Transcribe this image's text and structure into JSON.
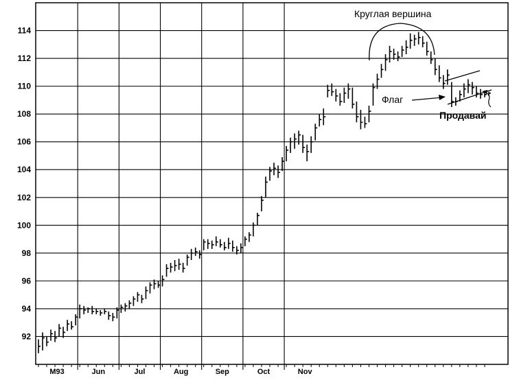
{
  "chart_data": {
    "type": "ohlc",
    "title": "",
    "xlabel": "",
    "ylabel": "",
    "ylim": [
      90,
      116
    ],
    "y_ticks": [
      92,
      94,
      96,
      98,
      100,
      102,
      104,
      106,
      108,
      110,
      112,
      114
    ],
    "x_ticks": [
      "M93",
      "Jun",
      "Jul",
      "Aug",
      "Sep",
      "Oct",
      "Nov"
    ],
    "grid": true,
    "annotations": {
      "rounded_top": "Круглая вершина",
      "flag": "Флаг",
      "sell": "Продавай"
    },
    "series": [
      {
        "values": [
          {
            "high": 91.8,
            "low": 90.8,
            "close": 91.3
          },
          {
            "high": 92.3,
            "low": 91.0,
            "close": 91.9
          },
          {
            "high": 92.0,
            "low": 91.3,
            "close": 91.6
          },
          {
            "high": 92.5,
            "low": 91.7,
            "close": 92.2
          },
          {
            "high": 92.4,
            "low": 91.6,
            "close": 91.9
          },
          {
            "high": 92.9,
            "low": 92.0,
            "close": 92.6
          },
          {
            "high": 92.7,
            "low": 91.9,
            "close": 92.3
          },
          {
            "high": 93.2,
            "low": 92.4,
            "close": 92.9
          },
          {
            "high": 93.1,
            "low": 92.5,
            "close": 92.7
          },
          {
            "high": 93.6,
            "low": 92.8,
            "close": 93.4
          },
          {
            "high": 94.3,
            "low": 93.3,
            "close": 94.0
          },
          {
            "high": 94.2,
            "low": 93.6,
            "close": 93.9
          },
          {
            "high": 94.1,
            "low": 93.7,
            "close": 94.0
          },
          {
            "high": 94.2,
            "low": 93.6,
            "close": 93.8
          },
          {
            "high": 94.0,
            "low": 93.6,
            "close": 93.8
          },
          {
            "high": 93.9,
            "low": 93.5,
            "close": 93.7
          },
          {
            "high": 94.0,
            "low": 93.6,
            "close": 93.8
          },
          {
            "high": 93.8,
            "low": 93.2,
            "close": 93.5
          },
          {
            "high": 93.7,
            "low": 93.1,
            "close": 93.4
          },
          {
            "high": 94.1,
            "low": 93.3,
            "close": 93.9
          },
          {
            "high": 94.3,
            "low": 93.7,
            "close": 94.1
          },
          {
            "high": 94.4,
            "low": 93.8,
            "close": 94.2
          },
          {
            "high": 94.6,
            "low": 94.0,
            "close": 94.4
          },
          {
            "high": 94.9,
            "low": 94.2,
            "close": 94.7
          },
          {
            "high": 95.2,
            "low": 94.5,
            "close": 95.0
          },
          {
            "high": 95.0,
            "low": 94.4,
            "close": 94.7
          },
          {
            "high": 95.6,
            "low": 94.7,
            "close": 95.3
          },
          {
            "high": 95.9,
            "low": 95.1,
            "close": 95.7
          },
          {
            "high": 96.1,
            "low": 95.4,
            "close": 95.8
          },
          {
            "high": 96.0,
            "low": 95.5,
            "close": 95.7
          },
          {
            "high": 96.4,
            "low": 95.6,
            "close": 96.1
          },
          {
            "high": 97.2,
            "low": 96.3,
            "close": 96.9
          },
          {
            "high": 97.3,
            "low": 96.6,
            "close": 97.0
          },
          {
            "high": 97.5,
            "low": 96.7,
            "close": 97.1
          },
          {
            "high": 97.6,
            "low": 96.8,
            "close": 97.2
          },
          {
            "high": 97.3,
            "low": 96.6,
            "close": 96.9
          },
          {
            "high": 97.9,
            "low": 97.1,
            "close": 97.7
          },
          {
            "high": 98.3,
            "low": 97.5,
            "close": 98.0
          },
          {
            "high": 98.4,
            "low": 97.8,
            "close": 98.1
          },
          {
            "high": 98.2,
            "low": 97.6,
            "close": 97.9
          },
          {
            "high": 99.0,
            "low": 98.2,
            "close": 98.8
          },
          {
            "high": 99.0,
            "low": 98.3,
            "close": 98.7
          },
          {
            "high": 98.9,
            "low": 98.3,
            "close": 98.6
          },
          {
            "high": 99.2,
            "low": 98.5,
            "close": 98.8
          },
          {
            "high": 99.0,
            "low": 98.4,
            "close": 98.6
          },
          {
            "high": 98.8,
            "low": 98.2,
            "close": 98.4
          },
          {
            "high": 99.1,
            "low": 98.3,
            "close": 98.7
          },
          {
            "high": 98.9,
            "low": 98.1,
            "close": 98.4
          },
          {
            "high": 98.5,
            "low": 97.9,
            "close": 98.2
          },
          {
            "high": 98.7,
            "low": 98.0,
            "close": 98.4
          },
          {
            "high": 99.2,
            "low": 98.5,
            "close": 99.0
          },
          {
            "high": 99.5,
            "low": 98.8,
            "close": 99.3
          },
          {
            "high": 100.2,
            "low": 99.2,
            "close": 100.0
          },
          {
            "high": 100.9,
            "low": 100.0,
            "close": 100.7
          },
          {
            "high": 102.1,
            "low": 101.0,
            "close": 101.8
          },
          {
            "high": 103.5,
            "low": 102.0,
            "close": 103.1
          },
          {
            "high": 104.2,
            "low": 103.2,
            "close": 103.9
          },
          {
            "high": 104.5,
            "low": 103.6,
            "close": 104.1
          },
          {
            "high": 104.3,
            "low": 103.4,
            "close": 103.8
          },
          {
            "high": 104.9,
            "low": 103.9,
            "close": 104.6
          },
          {
            "high": 105.7,
            "low": 104.6,
            "close": 105.4
          },
          {
            "high": 106.3,
            "low": 105.2,
            "close": 106.0
          },
          {
            "high": 106.6,
            "low": 105.5,
            "close": 106.2
          },
          {
            "high": 106.8,
            "low": 105.8,
            "close": 106.5
          },
          {
            "high": 106.5,
            "low": 105.2,
            "close": 105.6
          },
          {
            "high": 105.8,
            "low": 104.6,
            "close": 105.3
          },
          {
            "high": 106.4,
            "low": 105.2,
            "close": 106.0
          },
          {
            "high": 107.3,
            "low": 106.1,
            "close": 107.0
          },
          {
            "high": 108.0,
            "low": 107.1,
            "close": 107.6
          },
          {
            "high": 108.4,
            "low": 107.2,
            "close": 107.8
          },
          {
            "high": 110.1,
            "low": 109.2,
            "close": 109.7
          },
          {
            "high": 110.2,
            "low": 109.3,
            "close": 109.6
          },
          {
            "high": 109.8,
            "low": 108.9,
            "close": 109.3
          },
          {
            "high": 109.5,
            "low": 108.6,
            "close": 108.9
          },
          {
            "high": 109.9,
            "low": 108.8,
            "close": 109.5
          },
          {
            "high": 110.2,
            "low": 109.1,
            "close": 109.8
          },
          {
            "high": 109.9,
            "low": 108.4,
            "close": 108.7
          },
          {
            "high": 108.9,
            "low": 107.4,
            "close": 107.8
          },
          {
            "high": 108.3,
            "low": 106.9,
            "close": 107.4
          },
          {
            "high": 107.8,
            "low": 107.0,
            "close": 107.3
          },
          {
            "high": 108.6,
            "low": 107.4,
            "close": 108.2
          },
          {
            "high": 110.2,
            "low": 108.6,
            "close": 109.9
          },
          {
            "high": 110.9,
            "low": 109.8,
            "close": 110.5
          },
          {
            "high": 111.6,
            "low": 110.6,
            "close": 111.2
          },
          {
            "high": 112.3,
            "low": 111.1,
            "close": 111.9
          },
          {
            "high": 112.9,
            "low": 111.7,
            "close": 112.5
          },
          {
            "high": 112.7,
            "low": 111.9,
            "close": 112.3
          },
          {
            "high": 112.5,
            "low": 111.8,
            "close": 112.1
          },
          {
            "high": 112.9,
            "low": 112.1,
            "close": 112.6
          },
          {
            "high": 113.3,
            "low": 112.3,
            "close": 112.8
          },
          {
            "high": 113.8,
            "low": 112.7,
            "close": 113.3
          },
          {
            "high": 113.7,
            "low": 112.9,
            "close": 113.4
          },
          {
            "high": 113.9,
            "low": 113.0,
            "close": 113.5
          },
          {
            "high": 113.6,
            "low": 112.8,
            "close": 113.1
          },
          {
            "high": 113.2,
            "low": 112.2,
            "close": 112.5
          },
          {
            "high": 112.5,
            "low": 111.6,
            "close": 111.9
          },
          {
            "high": 112.0,
            "low": 110.8,
            "close": 111.2
          },
          {
            "high": 111.5,
            "low": 110.3,
            "close": 110.6
          },
          {
            "high": 110.8,
            "low": 109.8,
            "close": 110.2
          },
          {
            "high": 111.2,
            "low": 110.1,
            "close": 110.8
          },
          {
            "high": 110.3,
            "low": 108.5,
            "close": 108.9
          },
          {
            "high": 109.2,
            "low": 108.6,
            "close": 108.9
          },
          {
            "high": 109.7,
            "low": 108.9,
            "close": 109.4
          },
          {
            "high": 110.2,
            "low": 109.2,
            "close": 109.8
          },
          {
            "high": 110.5,
            "low": 109.5,
            "close": 110.1
          },
          {
            "high": 110.3,
            "low": 109.4,
            "close": 109.9
          },
          {
            "high": 110.0,
            "low": 109.2,
            "close": 109.5
          },
          {
            "high": 109.8,
            "low": 109.1,
            "close": 109.4
          },
          {
            "high": 109.6,
            "low": 109.2,
            "close": 109.4
          },
          {
            "high": 109.6,
            "low": 109.3,
            "close": 109.5
          }
        ]
      }
    ]
  }
}
